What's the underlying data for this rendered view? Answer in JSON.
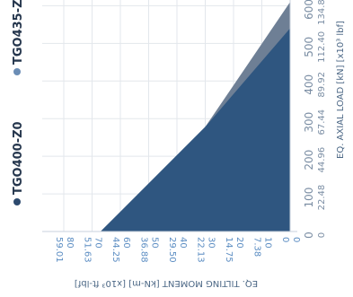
{
  "chart_data": {
    "type": "area",
    "orientation": "rotated 90° clockwise (y-axis runs horizontally along the bottom, reversed)",
    "title": "",
    "xlabel_metric": "EQ. AXIAL LOAD [kN]",
    "xlabel_imperial": "[x10³ lbf]",
    "ylabel_metric": "EQ. TILTING MOMENT [kN-m]",
    "ylabel_imperial": "[x10³ ft-lbf]",
    "x_ticks_metric": [
      "0",
      "100",
      "200",
      "300",
      "400",
      "500",
      "600"
    ],
    "x_ticks_imperial": [
      "0",
      "22.48",
      "44.96",
      "67.44",
      "89.92",
      "112.40",
      "134.88"
    ],
    "y_ticks_metric": [
      "0",
      "10",
      "20",
      "30",
      "40",
      "50",
      "60",
      "70",
      "80"
    ],
    "y_ticks_imperial": [
      "0",
      "7.38",
      "14.75",
      "22.13",
      "29.50",
      "36.88",
      "44.25",
      "51.63",
      "59.01"
    ],
    "xlim": [
      0,
      620
    ],
    "ylim": [
      0,
      80
    ],
    "grid": true,
    "legend_placement": "left",
    "series": [
      {
        "name": "TGO435-Z0",
        "color": "#6e7f95",
        "points": [
          [
            0,
            0
          ],
          [
            0,
            67
          ],
          [
            278,
            30
          ],
          [
            610,
            0
          ]
        ]
      },
      {
        "name": "TGO400-Z0",
        "color": "#2f5680",
        "points": [
          [
            0,
            0
          ],
          [
            0,
            50
          ],
          [
            278,
            30
          ],
          [
            540,
            0
          ]
        ]
      }
    ],
    "overlap_color": "#35577f",
    "light_region_color": "#5b8bbd"
  }
}
